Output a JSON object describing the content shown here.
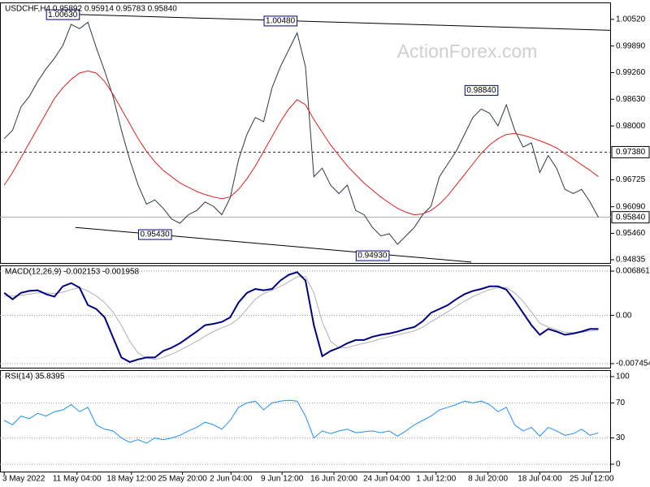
{
  "chart_data": [
    {
      "type": "line",
      "title": "USDCHF,H4  0.95892 0.95914 0.95783 0.95840",
      "watermark": "ActionForex.com",
      "xlim": [
        -0.5,
        72.5
      ],
      "ylim": [
        0.9474,
        1.0092
      ],
      "yticks": [
        {
          "value": 1.0052,
          "label": "1.00520"
        },
        {
          "value": 0.9989,
          "label": "0.99890"
        },
        {
          "value": 0.9926,
          "label": "0.99260"
        },
        {
          "value": 0.9863,
          "label": "0.98630"
        },
        {
          "value": 0.98,
          "label": "0.98000"
        },
        {
          "value": 0.96725,
          "label": "0.96725"
        },
        {
          "value": 0.9609,
          "label": "0.96090"
        },
        {
          "value": 0.9546,
          "label": "0.95460"
        },
        {
          "value": 0.94835,
          "label": "0.94835"
        }
      ],
      "grid": false,
      "hlines": [
        {
          "value": 0.9738,
          "label": "0.97380",
          "style": "dashed"
        },
        {
          "value": 0.9584,
          "label": "0.95840",
          "style": "solid"
        }
      ],
      "series": [
        {
          "color": "#2b3a42",
          "values": [
            0.977,
            0.979,
            0.9845,
            0.987,
            0.9905,
            0.9935,
            0.996,
            0.999,
            1.004,
            1.003,
            1.0045,
            0.9985,
            0.993,
            0.987,
            0.979,
            0.972,
            0.966,
            0.9615,
            0.9625,
            0.9605,
            0.958,
            0.957,
            0.959,
            0.96,
            0.962,
            0.961,
            0.959,
            0.963,
            0.972,
            0.978,
            0.982,
            0.981,
            0.989,
            0.994,
            0.998,
            1.002,
            0.994,
            0.968,
            0.97,
            0.966,
            0.964,
            0.966,
            0.96,
            0.959,
            0.956,
            0.954,
            0.9545,
            0.952,
            0.954,
            0.956,
            0.959,
            0.961,
            0.968,
            0.971,
            0.974,
            0.978,
            0.982,
            0.984,
            0.983,
            0.98,
            0.985,
            0.979,
            0.975,
            0.976,
            0.969,
            0.973,
            0.97,
            0.965,
            0.964,
            0.965,
            0.962,
            0.9584
          ]
        },
        {
          "color": "#e02020",
          "values": [
            0.966,
            0.969,
            0.9725,
            0.976,
            0.9795,
            0.983,
            0.9865,
            0.989,
            0.991,
            0.9925,
            0.993,
            0.9925,
            0.9905,
            0.9875,
            0.984,
            0.9805,
            0.977,
            0.974,
            0.9715,
            0.9695,
            0.968,
            0.9665,
            0.9655,
            0.9645,
            0.9638,
            0.9632,
            0.9628,
            0.9632,
            0.965,
            0.9675,
            0.9705,
            0.974,
            0.9775,
            0.981,
            0.984,
            0.9862,
            0.985,
            0.9815,
            0.9785,
            0.9755,
            0.973,
            0.9705,
            0.9685,
            0.9665,
            0.9648,
            0.9632,
            0.9618,
            0.9605,
            0.9596,
            0.959,
            0.9592,
            0.96,
            0.9615,
            0.9635,
            0.966,
            0.9685,
            0.971,
            0.9735,
            0.9755,
            0.977,
            0.978,
            0.9782,
            0.9778,
            0.9772,
            0.9765,
            0.9757,
            0.9748,
            0.9735,
            0.9722,
            0.9708,
            0.9695,
            0.968
          ]
        }
      ],
      "trendlines": [
        {
          "color": "#000000",
          "points": [
            [
              8,
              1.0064
            ],
            [
              72.5,
              1.0026
            ]
          ]
        },
        {
          "color": "#000000",
          "points": [
            [
              8.5,
              0.956
            ],
            [
              55.8,
              0.9478
            ]
          ]
        }
      ],
      "annotations": [
        {
          "index": 7,
          "value": 1.0063,
          "label": "1.00630"
        },
        {
          "index": 33,
          "value": 1.0048,
          "label": "1.00480"
        },
        {
          "index": 57,
          "value": 0.9884,
          "label": "0.98840"
        },
        {
          "index": 18,
          "value": 0.9543,
          "label": "0.95430"
        },
        {
          "index": 44,
          "value": 0.9493,
          "label": "0.94930"
        }
      ]
    },
    {
      "type": "line",
      "title": "MACD(12,26,9) -0.002153 -0.001958",
      "xlim": [
        -0.5,
        72.5
      ],
      "ylim": [
        -0.00821,
        0.00774
      ],
      "yticks": [
        0.006861,
        {
          "value": 0,
          "label": "0.00"
        },
        -0.007454
      ],
      "grid": true,
      "series": [
        {
          "color": "#b0b0b0",
          "values": [
            0.003,
            0.003,
            0.0031,
            0.0033,
            0.0035,
            0.0035,
            0.0034,
            0.0036,
            0.004,
            0.0043,
            0.0038,
            0.003,
            0.002,
            0.0005,
            -0.0015,
            -0.004,
            -0.0058,
            -0.0066,
            -0.0068,
            -0.0065,
            -0.006,
            -0.0054,
            -0.0047,
            -0.004,
            -0.0032,
            -0.0025,
            -0.0019,
            -0.0014,
            -0.0005,
            0.001,
            0.0025,
            0.0034,
            0.0039,
            0.0045,
            0.0052,
            0.006,
            0.006,
            0.0035,
            -0.001,
            -0.004,
            -0.005,
            -0.005,
            -0.0046,
            -0.0043,
            -0.004,
            -0.0036,
            -0.0033,
            -0.003,
            -0.0027,
            -0.0024,
            -0.0018,
            -0.001,
            -0.0002,
            0.0006,
            0.0014,
            0.0022,
            0.0029,
            0.0035,
            0.004,
            0.0043,
            0.0043,
            0.0035,
            0.0022,
            0.0005,
            -0.0012,
            -0.0018,
            -0.0022,
            -0.0026,
            -0.0027,
            -0.0026,
            -0.0024,
            -0.0023
          ]
        },
        {
          "color": "#000080",
          "values": [
            0.0035,
            0.0025,
            0.0035,
            0.0038,
            0.0039,
            0.0033,
            0.0029,
            0.0045,
            0.005,
            0.0043,
            0.0016,
            0.001,
            -0.0003,
            -0.0034,
            -0.0065,
            -0.0072,
            -0.0068,
            -0.0065,
            -0.0065,
            -0.0055,
            -0.005,
            -0.0043,
            -0.0034,
            -0.0025,
            -0.0015,
            -0.0013,
            -0.001,
            -0.0003,
            0.002,
            0.0035,
            0.0041,
            0.0039,
            0.0041,
            0.0054,
            0.0063,
            0.0067,
            0.0054,
            -0.0015,
            -0.0063,
            -0.0055,
            -0.005,
            -0.0043,
            -0.0038,
            -0.0038,
            -0.0033,
            -0.003,
            -0.0028,
            -0.0025,
            -0.0021,
            -0.0018,
            -0.0009,
            0.0004,
            0.001,
            0.0016,
            0.0025,
            0.0033,
            0.0038,
            0.0041,
            0.0045,
            0.0045,
            0.004,
            0.0023,
            0.0004,
            -0.0015,
            -0.003,
            -0.0021,
            -0.0025,
            -0.003,
            -0.0028,
            -0.0025,
            -0.0021,
            -0.0021
          ]
        }
      ]
    },
    {
      "type": "line",
      "title": "RSI(14) 35.8395",
      "xlim": [
        -0.5,
        72.5
      ],
      "ylim": [
        -9.3,
        107.4
      ],
      "yticks": [
        100,
        70,
        30,
        0
      ],
      "grid": true,
      "xticks": [
        {
          "value": 0,
          "label": "3 May 2022"
        },
        {
          "value": 8.7,
          "label": "11 May 04:00"
        },
        {
          "value": 15.2,
          "label": "18 May 12:00"
        },
        {
          "value": 21.3,
          "label": "25 May 20:00"
        },
        {
          "value": 27.1,
          "label": "2 Jun 04:00"
        },
        {
          "value": 33.2,
          "label": "9 Jun 12:00"
        },
        {
          "value": 39.4,
          "label": "16 Jun 20:00"
        },
        {
          "value": 45.7,
          "label": "24 Jun 04:00"
        },
        {
          "value": 51.6,
          "label": "1 Jul 12:00"
        },
        {
          "value": 57.8,
          "label": "8 Jul 20:00"
        },
        {
          "value": 64,
          "label": "18 Jul 04:00"
        },
        {
          "value": 70.2,
          "label": "25 Jul 12:00"
        }
      ],
      "series": [
        {
          "color": "#1e90ff",
          "values": [
            50,
            45,
            55,
            52,
            58,
            55,
            60,
            62,
            68,
            60,
            65,
            45,
            40,
            38,
            30,
            25,
            28,
            24,
            30,
            28,
            30,
            33,
            38,
            42,
            48,
            45,
            40,
            50,
            65,
            70,
            72,
            62,
            70,
            72,
            73,
            72,
            55,
            30,
            38,
            35,
            38,
            40,
            36,
            37,
            38,
            36,
            38,
            32,
            38,
            45,
            50,
            55,
            62,
            65,
            68,
            72,
            70,
            72,
            68,
            60,
            65,
            45,
            38,
            42,
            32,
            42,
            38,
            33,
            35,
            40,
            33,
            35.8395
          ]
        }
      ]
    }
  ]
}
